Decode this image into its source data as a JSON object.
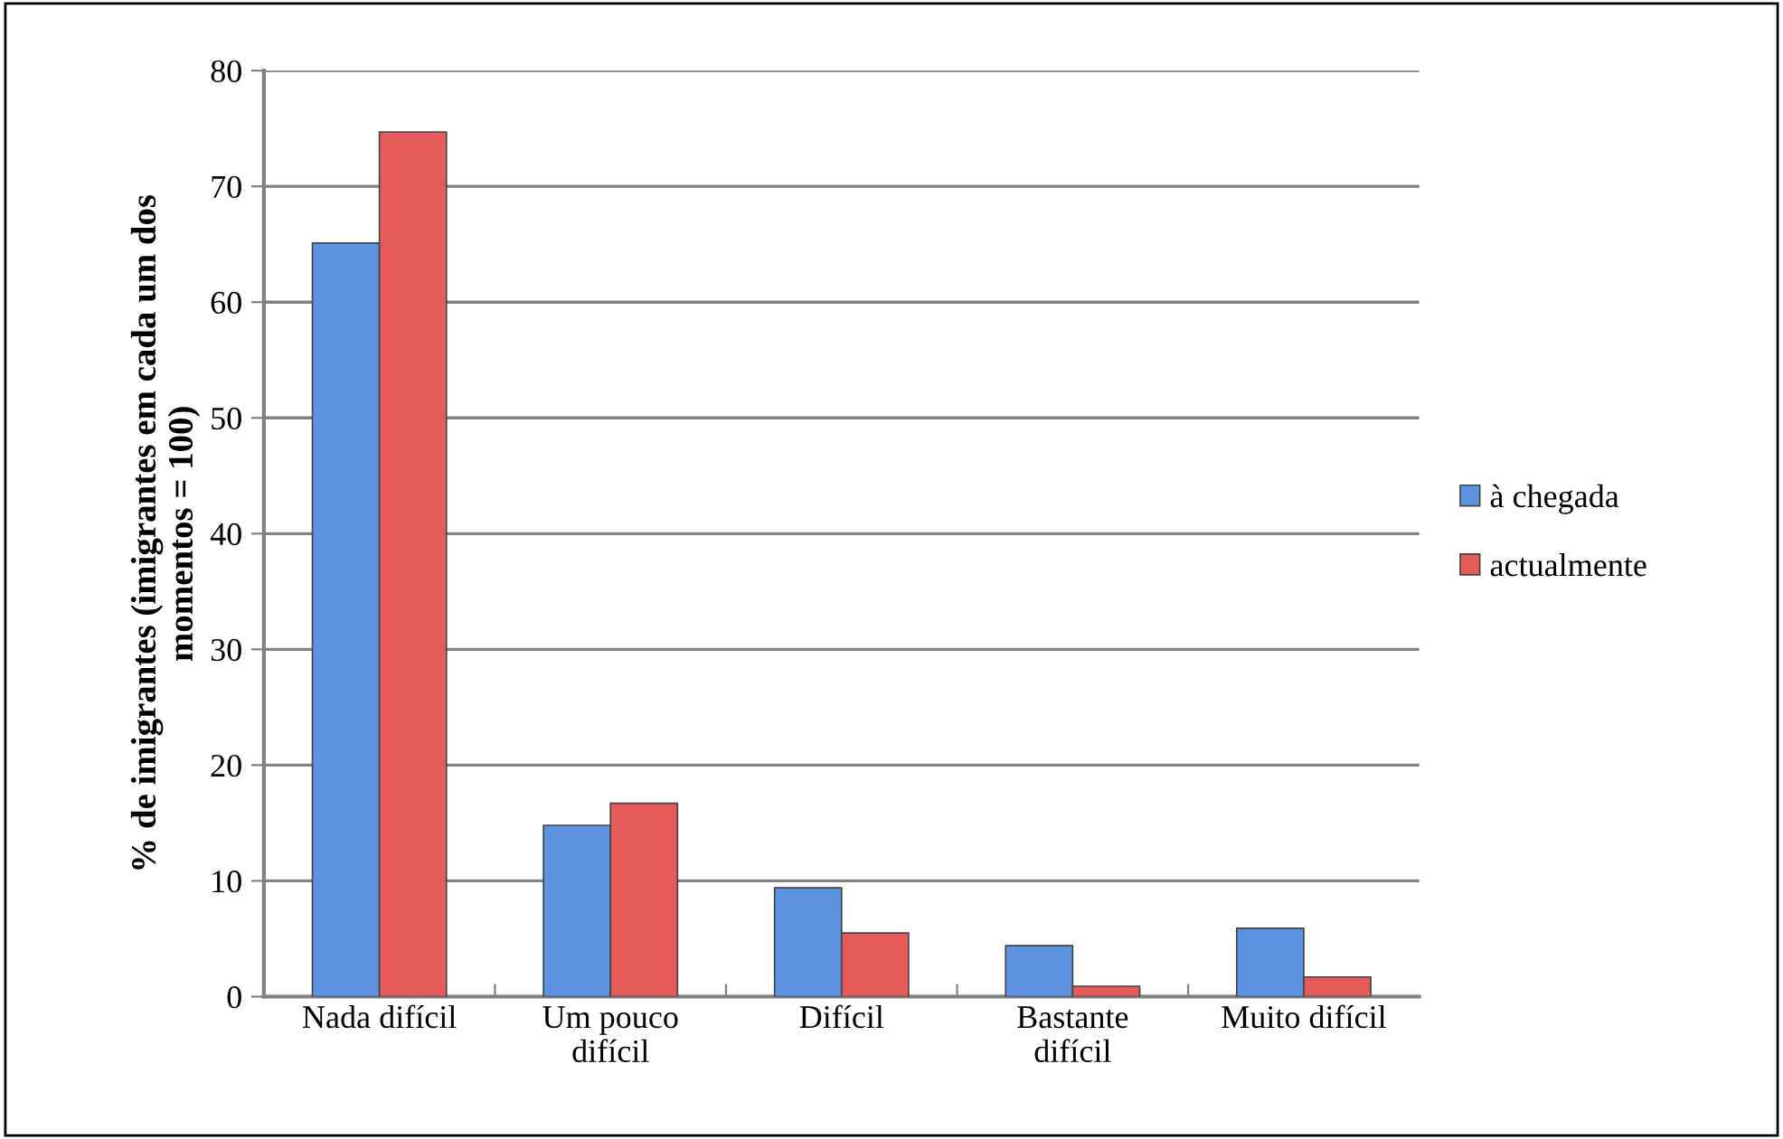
{
  "chart_data": {
    "type": "bar",
    "ylabel": "% de imigrantes (imigrantes em cada um dos\nmomentos = 100)",
    "categories": [
      "Nada difícil",
      "Um pouco\ndifícil",
      "Difícil",
      "Bastante\ndifícil",
      "Muito difícil"
    ],
    "series": [
      {
        "name": "à chegada",
        "color": "#5b93e0",
        "values": [
          65.1,
          14.8,
          9.4,
          4.4,
          5.9
        ]
      },
      {
        "name": "actualmente",
        "color": "#e45b5b",
        "values": [
          74.7,
          16.7,
          5.5,
          0.9,
          1.7
        ]
      }
    ],
    "ylim": [
      0,
      80
    ],
    "yticks": [
      0,
      10,
      20,
      30,
      40,
      50,
      60,
      70,
      80
    ],
    "grid": "y",
    "legend": "right"
  }
}
